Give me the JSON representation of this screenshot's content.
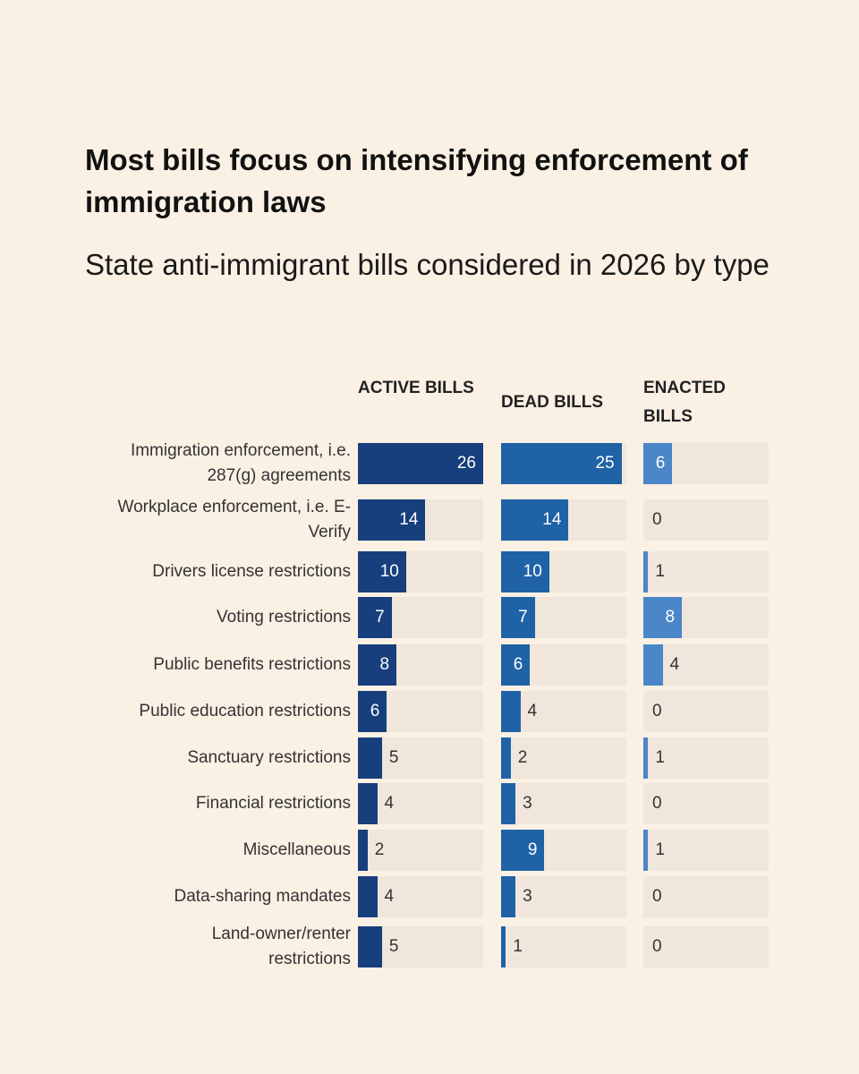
{
  "title": "Most bills focus on intensifying enforcement of immigration laws",
  "subtitle": "State anti-immigrant bills considered in 2026 by type",
  "chart_data": {
    "type": "bar",
    "orientation": "horizontal",
    "title": "Most bills focus on intensifying enforcement of immigration laws",
    "subtitle": "State anti-immigrant bills considered in 2026 by type",
    "categories": [
      "Immigration enforcement, i.e. 287(g) agreements",
      "Workplace enforcement, i.e. E-Verify",
      "Drivers license restrictions",
      "Voting restrictions",
      "Public benefits restrictions",
      "Public education restrictions",
      "Sanctuary restrictions",
      "Financial restrictions",
      "Miscellaneous",
      "Data-sharing mandates",
      "Land-owner/renter restrictions"
    ],
    "series": [
      {
        "name": "ACTIVE BILLS",
        "color": "#173f7d",
        "values": [
          26,
          14,
          10,
          7,
          8,
          6,
          5,
          4,
          2,
          4,
          5
        ]
      },
      {
        "name": "DEAD BILLS",
        "color": "#1f62a6",
        "values": [
          25,
          14,
          10,
          7,
          6,
          4,
          2,
          3,
          9,
          3,
          1
        ]
      },
      {
        "name": "ENACTED BILLS",
        "color": "#4a86c8",
        "values": [
          6,
          0,
          1,
          8,
          4,
          0,
          1,
          0,
          1,
          0,
          0
        ]
      }
    ],
    "xlim": [
      0,
      26
    ],
    "layout": "small multiples, shared scale",
    "grid": false,
    "track_color": "#f0e6db",
    "background": "#fbf0e4"
  }
}
